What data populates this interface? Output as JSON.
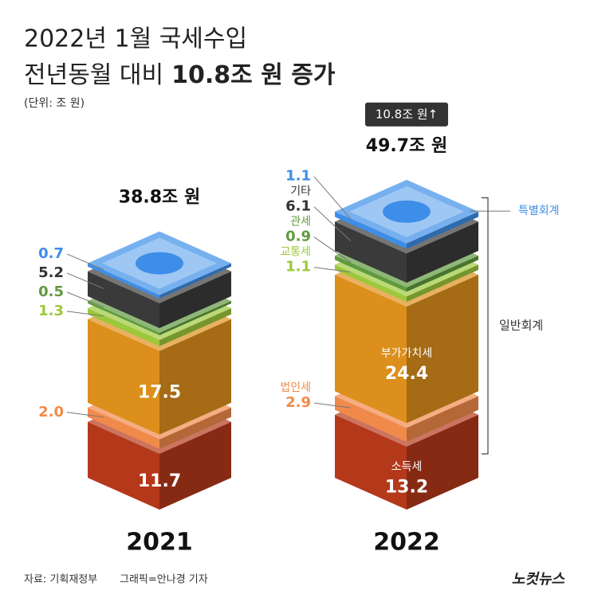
{
  "chart_data": {
    "type": "isometric_stack",
    "title": "2022년 1월 국세수입",
    "subtitle_prefix": "전년동월 대비",
    "subtitle_highlight": "10.8조 원 증가",
    "unit": "(단위: 조 원)",
    "badge": "10.8조 원↑",
    "categories": [
      "2021",
      "2022"
    ],
    "total_labels": [
      "38.8조 원",
      "49.7조 원"
    ],
    "group_label": "일반회계",
    "series": [
      {
        "name": "소득세",
        "color": "#b4381a",
        "values": [
          11.7,
          13.2
        ]
      },
      {
        "name": "법인세",
        "color": "#f08a4b",
        "values": [
          2.0,
          2.9
        ],
        "value_labels": [
          "2.0",
          "2.9"
        ]
      },
      {
        "name": "부가가치세",
        "color": "#dc8f1c",
        "values": [
          17.5,
          24.4
        ]
      },
      {
        "name": "교통세",
        "color": "#9cc83c",
        "values": [
          1.3,
          1.1
        ]
      },
      {
        "name": "관세",
        "color": "#5f9a3e",
        "values": [
          0.5,
          0.9
        ]
      },
      {
        "name": "기타",
        "color": "#3a3a3a",
        "values": [
          5.2,
          6.1
        ]
      },
      {
        "name": "특별회계",
        "color": "#3d8ee8",
        "values": [
          0.7,
          1.1
        ]
      }
    ]
  },
  "footer": {
    "source": "자료: 기획재정부",
    "credit": "그래픽=안나경 기자",
    "logo": "노컷뉴스"
  }
}
